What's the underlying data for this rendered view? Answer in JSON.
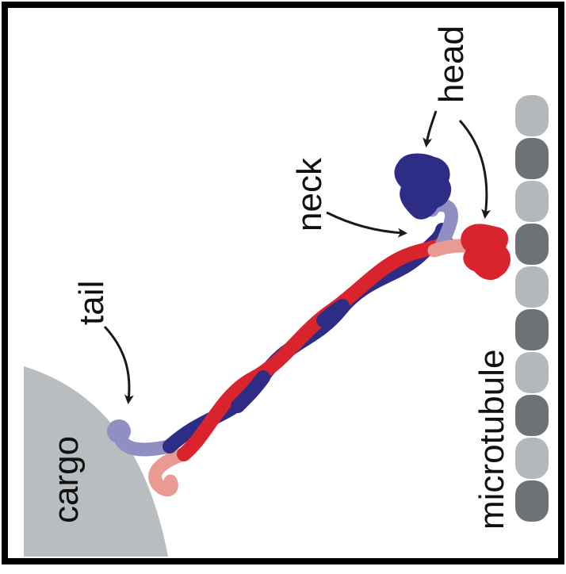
{
  "labels": {
    "head": "head",
    "neck": "neck",
    "tail": "tail",
    "cargo": "cargo",
    "microtubule": "microtubule"
  },
  "colors": {
    "frame": "#000000",
    "cargo": "#b9bdbf",
    "microtubule_light": "#b5b8ba",
    "microtubule_dark": "#6f7275",
    "chain_blue": "#2e2d86",
    "chain_blue_light": "#8f8fc4",
    "chain_red": "#d9232d",
    "chain_red_light": "#e99a93",
    "arrow": "#1a1a1a"
  },
  "microtubule": {
    "pattern": [
      "light",
      "dark",
      "light",
      "dark",
      "light",
      "dark",
      "light",
      "dark",
      "light",
      "dark"
    ]
  }
}
